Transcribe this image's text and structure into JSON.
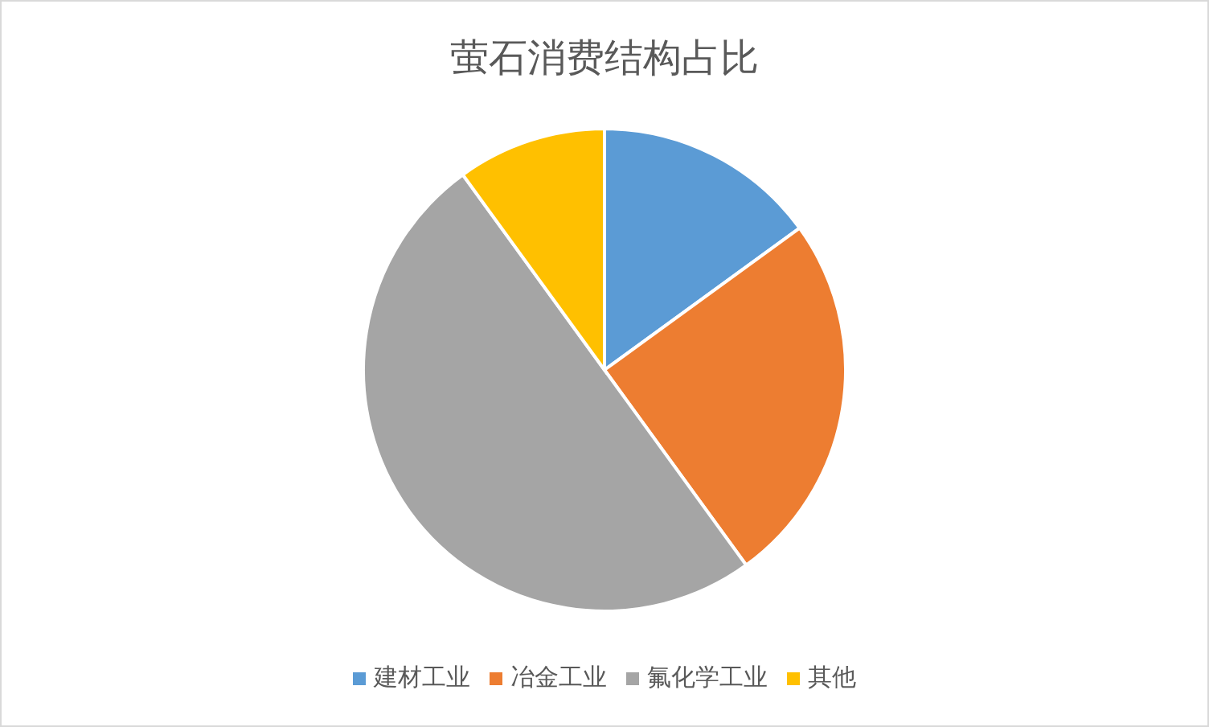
{
  "chart_data": {
    "type": "pie",
    "title": "萤石消费结构占比",
    "categories": [
      "建材工业",
      "冶金工业",
      "氟化学工业",
      "其他"
    ],
    "values": [
      15,
      25,
      50,
      10
    ],
    "colors": [
      "#5b9bd5",
      "#ed7d31",
      "#a5a5a5",
      "#ffc000"
    ],
    "legend": "bottom"
  }
}
